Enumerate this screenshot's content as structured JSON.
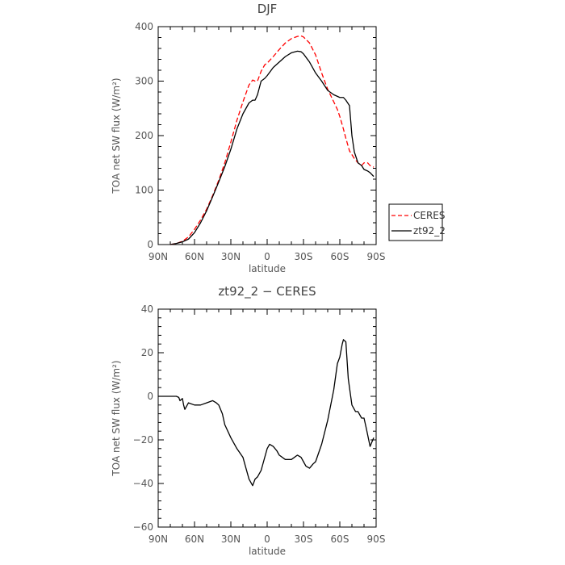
{
  "chart_data": [
    {
      "type": "line",
      "title": "DJF",
      "xlabel": "latitude",
      "ylabel": "TOA net SW flux (W/m²)",
      "xlim": [
        90,
        -90
      ],
      "ylim": [
        0,
        400
      ],
      "xticks": [
        90,
        60,
        30,
        0,
        -30,
        -60,
        -90
      ],
      "xtick_labels": [
        "90N",
        "60N",
        "30N",
        "0",
        "30S",
        "60S",
        "90S"
      ],
      "yticks": [
        0,
        100,
        200,
        300,
        400
      ],
      "ytick_labels": [
        "0",
        "100",
        "200",
        "300",
        "400"
      ],
      "grid": false,
      "legend_position": "outside-right",
      "series": [
        {
          "name": "CERES",
          "color": "#ff0000",
          "dash": "dashed",
          "x": [
            80,
            75,
            70,
            65,
            60,
            55,
            50,
            45,
            40,
            35,
            30,
            25,
            20,
            15,
            12,
            10,
            8,
            5,
            2,
            0,
            -5,
            -10,
            -15,
            -20,
            -25,
            -28,
            -30,
            -35,
            -40,
            -45,
            -50,
            -55,
            -58,
            -60,
            -63,
            -65,
            -68,
            -70,
            -72,
            -75,
            -78,
            -80,
            -83,
            -85,
            -88
          ],
          "y": [
            0,
            2,
            6,
            14,
            28,
            45,
            65,
            90,
            118,
            150,
            188,
            228,
            262,
            293,
            302,
            300,
            300,
            318,
            330,
            333,
            345,
            358,
            370,
            378,
            382,
            383,
            381,
            370,
            348,
            315,
            285,
            262,
            248,
            235,
            212,
            195,
            172,
            165,
            158,
            150,
            145,
            150,
            150,
            145,
            142
          ]
        },
        {
          "name": "zt92_2",
          "color": "#000000",
          "dash": "solid",
          "x": [
            80,
            75,
            70,
            65,
            60,
            55,
            50,
            45,
            40,
            35,
            30,
            25,
            20,
            15,
            12,
            10,
            8,
            5,
            2,
            0,
            -5,
            -10,
            -15,
            -20,
            -25,
            -28,
            -30,
            -35,
            -40,
            -45,
            -50,
            -55,
            -58,
            -60,
            -63,
            -65,
            -68,
            -70,
            -72,
            -75,
            -78,
            -80,
            -83,
            -85,
            -88
          ],
          "y": [
            0,
            2,
            5,
            10,
            22,
            40,
            62,
            88,
            115,
            143,
            175,
            212,
            240,
            260,
            265,
            265,
            275,
            300,
            305,
            310,
            325,
            335,
            345,
            352,
            355,
            354,
            350,
            335,
            315,
            300,
            283,
            275,
            272,
            270,
            270,
            265,
            255,
            200,
            170,
            150,
            145,
            138,
            135,
            132,
            125
          ]
        }
      ]
    },
    {
      "type": "line",
      "title": "zt92_2 − CERES",
      "xlabel": "latitude",
      "ylabel": "TOA net SW flux (W/m²)",
      "xlim": [
        90,
        -90
      ],
      "ylim": [
        -60,
        40
      ],
      "xticks": [
        90,
        60,
        30,
        0,
        -30,
        -60,
        -90
      ],
      "xtick_labels": [
        "90N",
        "60N",
        "30N",
        "0",
        "30S",
        "60S",
        "90S"
      ],
      "yticks": [
        -60,
        -40,
        -20,
        0,
        20,
        40
      ],
      "ytick_labels": [
        "−60",
        "−40",
        "−20",
        "0",
        "20",
        "40"
      ],
      "grid": false,
      "series": [
        {
          "color": "#000000",
          "dash": "solid",
          "x": [
            90,
            85,
            80,
            75,
            73,
            72,
            70,
            69,
            68,
            65,
            60,
            55,
            50,
            45,
            42,
            40,
            37,
            35,
            30,
            25,
            20,
            18,
            15,
            12,
            10,
            8,
            5,
            3,
            0,
            -2,
            -5,
            -8,
            -10,
            -15,
            -20,
            -25,
            -28,
            -30,
            -32,
            -35,
            -38,
            -40,
            -45,
            -50,
            -55,
            -58,
            -60,
            -62,
            -63,
            -65,
            -67,
            -70,
            -73,
            -75,
            -78,
            -80,
            -82,
            -85,
            -88
          ],
          "y": [
            0,
            0,
            0,
            0,
            -0.5,
            -2,
            -1,
            -4,
            -6,
            -3,
            -4,
            -4,
            -3,
            -2,
            -3,
            -4,
            -8,
            -13,
            -19,
            -24,
            -28,
            -32,
            -38,
            -41,
            -38,
            -37,
            -34,
            -30,
            -24,
            -22,
            -23,
            -25,
            -27,
            -29,
            -29,
            -27,
            -28,
            -30,
            -32,
            -33,
            -31,
            -30,
            -22,
            -11,
            3,
            15,
            18,
            24,
            26,
            25,
            8,
            -4,
            -7,
            -7,
            -10,
            -10,
            -15,
            -23,
            -19
          ]
        }
      ]
    }
  ],
  "legend": {
    "entries": [
      {
        "label": "CERES",
        "color": "#ff0000",
        "dash": "dashed"
      },
      {
        "label": "zt92_2",
        "color": "#000000",
        "dash": "solid"
      }
    ]
  }
}
